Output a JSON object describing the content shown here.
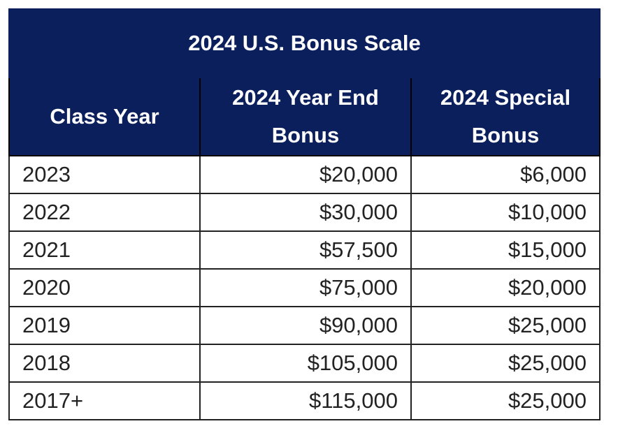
{
  "table": {
    "title": "2024 U.S. Bonus Scale",
    "headers": {
      "class_year": "Class Year",
      "year_end_line1": "2024 Year End",
      "year_end_line2": "Bonus",
      "special_line1": "2024 Special",
      "special_line2": "Bonus"
    },
    "rows": [
      {
        "year": "2023",
        "year_end": "$20,000",
        "special": "$6,000"
      },
      {
        "year": "2022",
        "year_end": "$30,000",
        "special": "$10,000"
      },
      {
        "year": "2021",
        "year_end": "$57,500",
        "special": "$15,000"
      },
      {
        "year": "2020",
        "year_end": "$75,000",
        "special": "$20,000"
      },
      {
        "year": "2019",
        "year_end": "$90,000",
        "special": "$25,000"
      },
      {
        "year": "2018",
        "year_end": "$105,000",
        "special": "$25,000"
      },
      {
        "year": "2017+",
        "year_end": "$115,000",
        "special": "$25,000"
      }
    ]
  },
  "colors": {
    "header_bg": "#0b1f5c",
    "header_text": "#ffffff",
    "body_text": "#222222",
    "border": "#222222"
  }
}
